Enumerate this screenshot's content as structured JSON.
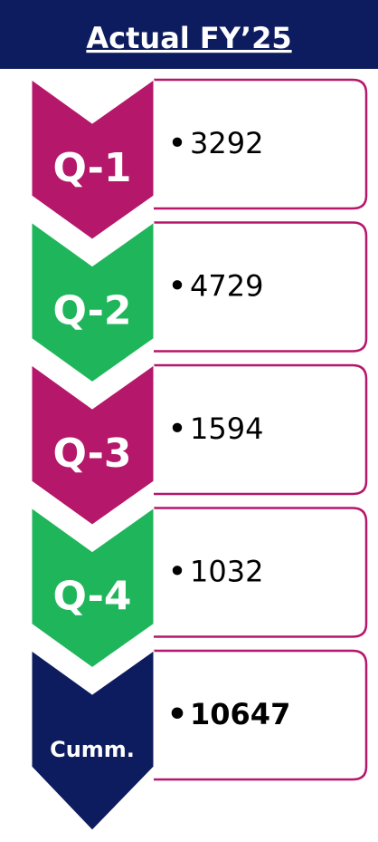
{
  "header": {
    "title": "Actual FY’25"
  },
  "steps": [
    {
      "label": "Q-1",
      "value": 3292,
      "color": "#b5176a"
    },
    {
      "label": "Q-2",
      "value": 4729,
      "color": "#1fb65b"
    },
    {
      "label": "Q-3",
      "value": 1594,
      "color": "#b5176a"
    },
    {
      "label": "Q-4",
      "value": 1032,
      "color": "#1fb65b"
    },
    {
      "label": "Cumm.",
      "value": 10647,
      "color": "#0d1c5e"
    }
  ]
}
